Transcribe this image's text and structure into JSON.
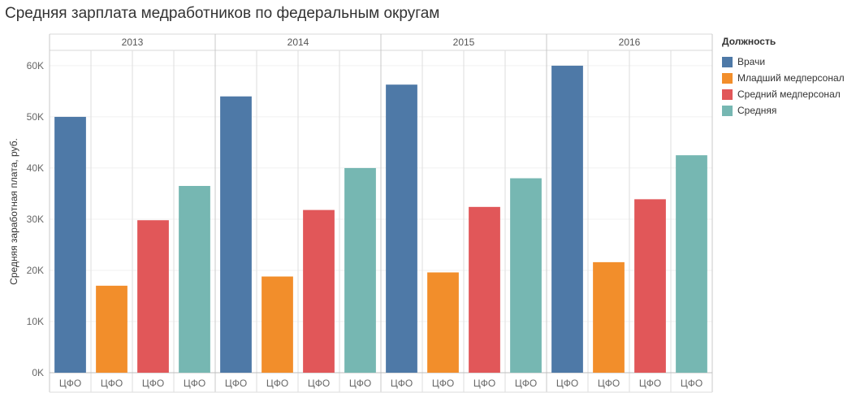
{
  "title": "Средняя зарплата медработников по федеральным округам",
  "legend": {
    "title": "Должность",
    "items": [
      {
        "label": "Врачи",
        "color": "#4e79a7"
      },
      {
        "label": "Младший медперсонал",
        "color": "#f28e2b"
      },
      {
        "label": "Средний медперсонал",
        "color": "#e15759"
      },
      {
        "label": "Средняя",
        "color": "#76b7b2"
      }
    ]
  },
  "chart_data": {
    "type": "bar",
    "ylabel": "Средняя заработная плата, руб.",
    "ylim": [
      0,
      63000
    ],
    "yticks": [
      0,
      10000,
      20000,
      30000,
      40000,
      50000,
      60000
    ],
    "ytick_labels": [
      "0K",
      "10K",
      "20K",
      "30K",
      "40K",
      "50K",
      "60K"
    ],
    "category_label": "ЦФО",
    "grid": true,
    "legend_position": "right",
    "groups": [
      {
        "year": "2013",
        "values": [
          50000,
          17000,
          29800,
          36500
        ]
      },
      {
        "year": "2014",
        "values": [
          54000,
          18800,
          31800,
          40000
        ]
      },
      {
        "year": "2015",
        "values": [
          56300,
          19600,
          32400,
          38000
        ]
      },
      {
        "year": "2016",
        "values": [
          60000,
          21600,
          33900,
          42500
        ]
      }
    ],
    "series": [
      {
        "name": "Врачи",
        "color": "#4e79a7"
      },
      {
        "name": "Младший медперсонал",
        "color": "#f28e2b"
      },
      {
        "name": "Средний медперсонал",
        "color": "#e15759"
      },
      {
        "name": "Средняя",
        "color": "#76b7b2"
      }
    ]
  }
}
